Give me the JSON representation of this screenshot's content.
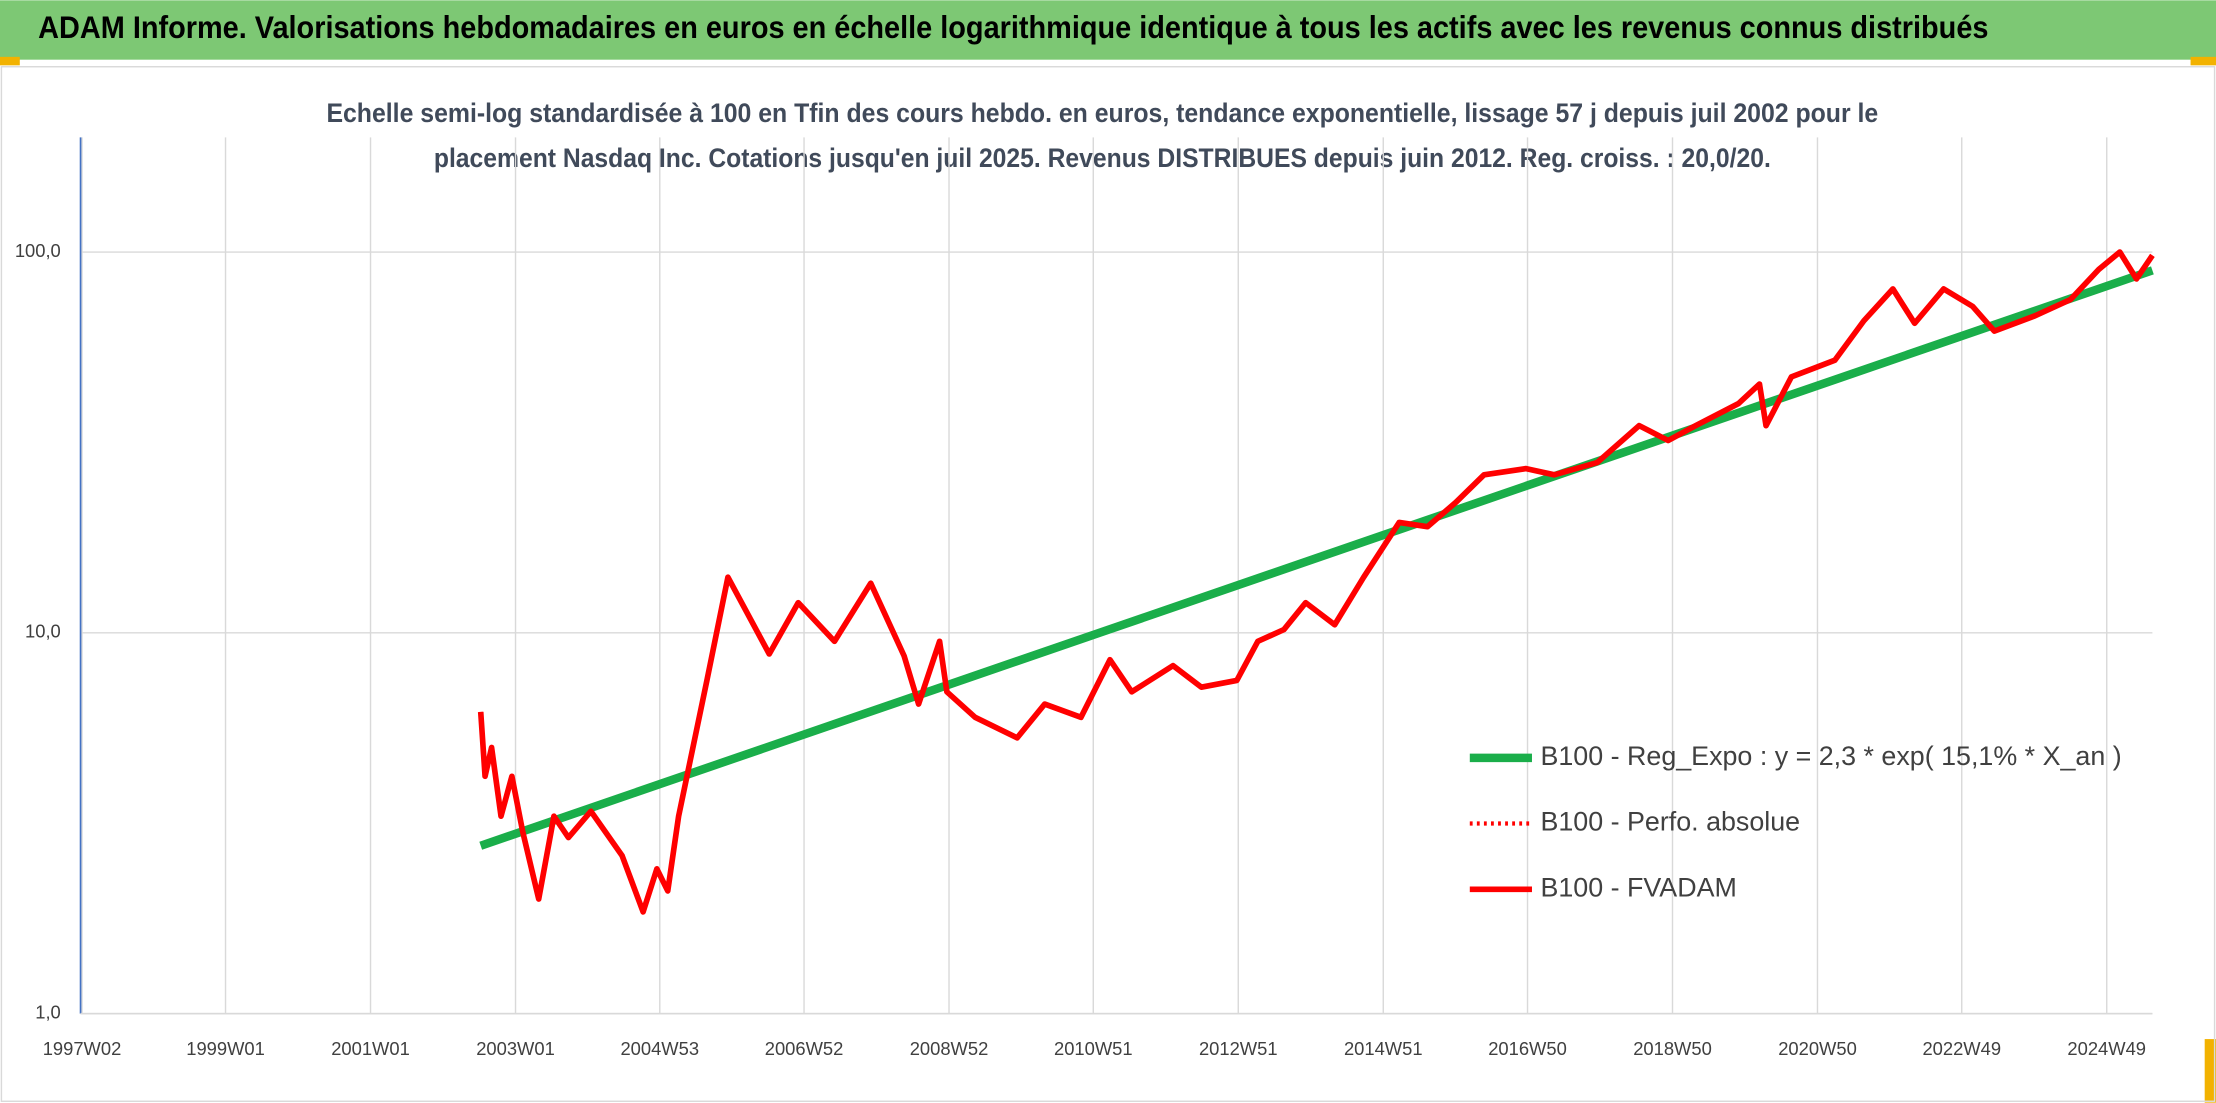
{
  "header": {
    "title": "ADAM Informe. Valorisations hebdomadaires en euros en échelle logarithmique identique à tous les actifs avec les revenus connus distribués"
  },
  "chart_data": {
    "type": "line",
    "subtitle": [
      "Echelle semi-log standardisée à 100 en Tfin des cours hebdo. en euros, tendance exponentielle, lissage 57 j depuis juil 2002 pour le",
      "placement Nasdaq Inc. Cotations jusqu'en juil 2025. Revenus DISTRIBUES depuis juin 2012. Reg. croiss. : 20,0/20."
    ],
    "ylog": true,
    "grid": true,
    "legend": "right",
    "xlim": [
      1997.0,
      2025.58
    ],
    "xticks": [
      {
        "value": 1997.02,
        "label": "1997W02"
      },
      {
        "value": 1999.0,
        "label": "1999W01"
      },
      {
        "value": 2001.0,
        "label": "2001W01"
      },
      {
        "value": 2003.0,
        "label": "2003W01"
      },
      {
        "value": 2004.99,
        "label": "2004W53"
      },
      {
        "value": 2006.98,
        "label": "2006W52"
      },
      {
        "value": 2008.98,
        "label": "2008W52"
      },
      {
        "value": 2010.97,
        "label": "2010W51"
      },
      {
        "value": 2012.97,
        "label": "2012W51"
      },
      {
        "value": 2014.97,
        "label": "2014W51"
      },
      {
        "value": 2016.96,
        "label": "2016W50"
      },
      {
        "value": 2018.96,
        "label": "2018W50"
      },
      {
        "value": 2020.96,
        "label": "2020W50"
      },
      {
        "value": 2022.95,
        "label": "2022W49"
      },
      {
        "value": 2024.95,
        "label": "2024W49"
      }
    ],
    "ylim": [
      1,
      200
    ],
    "yticks": [
      {
        "value": 1,
        "label": "1,0"
      },
      {
        "value": 10,
        "label": "10,0"
      },
      {
        "value": 100,
        "label": "100,0"
      }
    ],
    "series": [
      {
        "name": "B100 - Reg_Expo : y = 2,3 * exp( 15,1% *  X_an )",
        "color": "#1aae4a",
        "style": "solid",
        "width": 6,
        "x": [
          2002.52,
          2025.58
        ],
        "values": [
          2.76,
          89.5
        ]
      },
      {
        "name": "B100 - Perfo. absolue",
        "color": "#ff0000",
        "style": "dotted",
        "width": 3,
        "x": [
          2002.52,
          2002.58,
          2002.67,
          2002.8,
          2002.95,
          2003.1,
          2003.32,
          2003.53,
          2003.73,
          2004.04,
          2004.47,
          2004.76,
          2004.95,
          2005.1,
          2005.25,
          2005.64,
          2005.93,
          2006.5,
          2006.9,
          2007.4,
          2007.9,
          2008.36,
          2008.56,
          2008.85,
          2008.95,
          2009.34,
          2009.92,
          2010.3,
          2010.8,
          2011.2,
          2011.5,
          2012.07,
          2012.46,
          2012.95,
          2013.24,
          2013.6,
          2013.9,
          2014.3,
          2014.7,
          2015.19,
          2015.58,
          2015.97,
          2016.36,
          2016.94,
          2017.33,
          2017.92,
          2018.5,
          2018.9,
          2019.28,
          2019.87,
          2020.16,
          2020.25,
          2020.6,
          2021.2,
          2021.6,
          2022.0,
          2022.3,
          2022.7,
          2023.1,
          2023.4,
          2023.96,
          2024.45,
          2024.84,
          2025.13,
          2025.36,
          2025.58
        ],
        "values": [
          6.2,
          4.2,
          5.0,
          3.3,
          4.2,
          3.0,
          2.0,
          3.3,
          2.9,
          3.4,
          2.6,
          1.85,
          2.4,
          2.1,
          3.3,
          7.5,
          14,
          8.8,
          12,
          9.5,
          13.5,
          8.7,
          6.5,
          9.5,
          7,
          6,
          5.3,
          6.5,
          6,
          8.5,
          7,
          8.2,
          7.2,
          7.5,
          9.5,
          10.2,
          12,
          10.5,
          14,
          19.5,
          19,
          22,
          26,
          27,
          26,
          28,
          35,
          32,
          35,
          40,
          45,
          35,
          47,
          52,
          66,
          80,
          65,
          80,
          72,
          62,
          68,
          75,
          90,
          100,
          85,
          98
        ]
      },
      {
        "name": "B100 - FVADAM",
        "color": "#ff0000",
        "style": "solid",
        "width": 4,
        "x": [
          2002.52,
          2002.58,
          2002.67,
          2002.8,
          2002.95,
          2003.1,
          2003.32,
          2003.53,
          2003.73,
          2004.04,
          2004.47,
          2004.76,
          2004.95,
          2005.1,
          2005.25,
          2005.64,
          2005.93,
          2006.5,
          2006.9,
          2007.4,
          2007.9,
          2008.36,
          2008.56,
          2008.85,
          2008.95,
          2009.34,
          2009.92,
          2010.3,
          2010.8,
          2011.2,
          2011.5,
          2012.07,
          2012.46,
          2012.95,
          2013.24,
          2013.6,
          2013.9,
          2014.3,
          2014.7,
          2015.19,
          2015.58,
          2015.97,
          2016.36,
          2016.94,
          2017.33,
          2017.92,
          2018.5,
          2018.9,
          2019.28,
          2019.87,
          2020.16,
          2020.25,
          2020.6,
          2021.2,
          2021.6,
          2022.0,
          2022.3,
          2022.7,
          2023.1,
          2023.4,
          2023.96,
          2024.45,
          2024.84,
          2025.13,
          2025.36,
          2025.58
        ],
        "values": [
          6.2,
          4.2,
          5.0,
          3.3,
          4.2,
          3.0,
          2.0,
          3.3,
          2.9,
          3.4,
          2.6,
          1.85,
          2.4,
          2.1,
          3.3,
          7.5,
          14,
          8.8,
          12,
          9.5,
          13.5,
          8.7,
          6.5,
          9.5,
          7,
          6,
          5.3,
          6.5,
          6,
          8.5,
          7,
          8.2,
          7.2,
          7.5,
          9.5,
          10.2,
          12,
          10.5,
          14,
          19.5,
          19,
          22,
          26,
          27,
          26,
          28,
          35,
          32,
          35,
          40,
          45,
          35,
          47,
          52,
          66,
          80,
          65,
          80,
          72,
          62,
          68,
          75,
          90,
          100,
          85,
          98
        ]
      }
    ]
  }
}
